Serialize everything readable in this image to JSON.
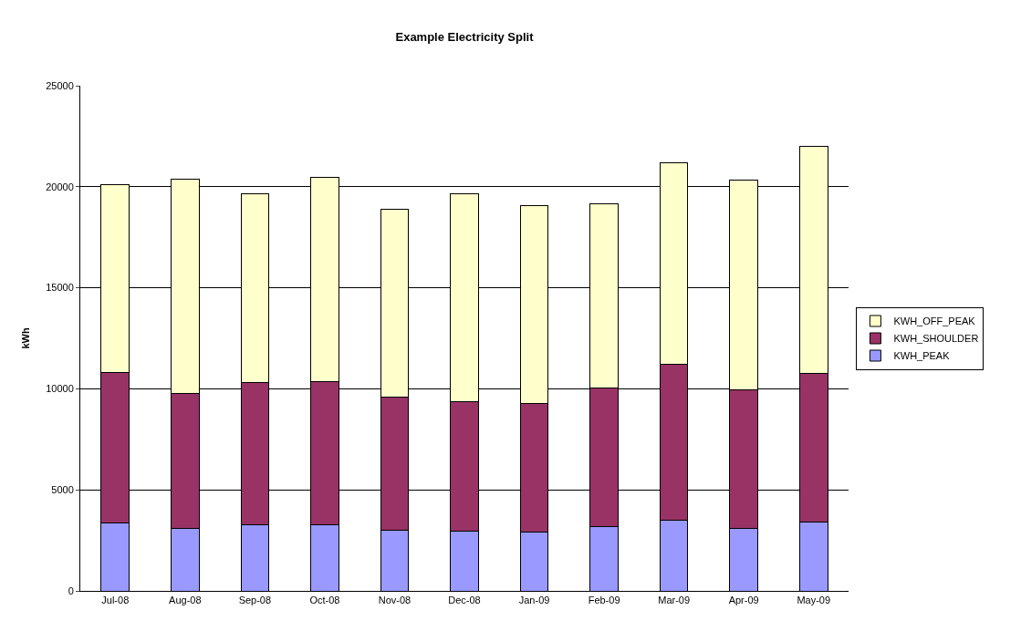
{
  "chart_data": {
    "type": "bar",
    "title": "Example Electricity Split",
    "ylabel": "kWh",
    "stacked": true,
    "grid": "y",
    "legend": "right",
    "categories": [
      "Jul-08",
      "Aug-08",
      "Sep-08",
      "Oct-08",
      "Nov-08",
      "Dec-08",
      "Jan-09",
      "Feb-09",
      "Mar-09",
      "Apr-09",
      "May-09"
    ],
    "ylim": [
      0,
      25000
    ],
    "yticks": [
      0,
      5000,
      10000,
      15000,
      20000,
      25000
    ],
    "series": [
      {
        "name": "KWH_PEAK",
        "color": "#9999ff",
        "values": [
          3380,
          3080,
          3260,
          3260,
          2990,
          2940,
          2900,
          3180,
          3500,
          3110,
          3390
        ]
      },
      {
        "name": "KWH_SHOULDER",
        "color": "#993366",
        "values": [
          7420,
          6670,
          7060,
          7090,
          6590,
          6430,
          6360,
          6880,
          7700,
          6830,
          7360
        ]
      },
      {
        "name": "KWH_OFF_PEAK",
        "color": "#ffffcc",
        "values": [
          9320,
          10640,
          9320,
          10100,
          9290,
          10270,
          9810,
          9100,
          9970,
          10410,
          11260
        ]
      }
    ]
  }
}
